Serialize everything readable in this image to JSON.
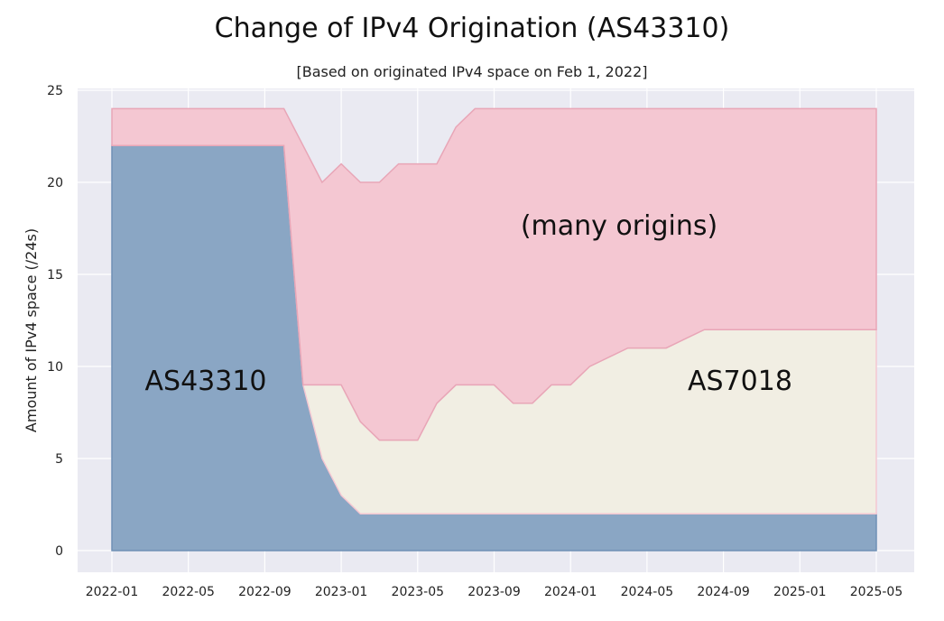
{
  "chart_data": {
    "type": "area",
    "title": "Change of IPv4 Origination (AS43310)",
    "subtitle": "[Based on originated IPv4 space on Feb 1, 2022]",
    "xlabel": "",
    "ylabel": "Amount of IPv4 space (/24s)",
    "ylim": [
      0,
      25
    ],
    "xlim": [
      "2021-12",
      "2025-06"
    ],
    "xticks": [
      "2022-01",
      "2022-05",
      "2022-09",
      "2023-01",
      "2023-05",
      "2023-09",
      "2024-01",
      "2024-05",
      "2024-09",
      "2025-01",
      "2025-05"
    ],
    "yticks": [
      0,
      5,
      10,
      15,
      20,
      25
    ],
    "grid": true,
    "stacked": true,
    "x": [
      "2022-01",
      "2022-04",
      "2022-07",
      "2022-10",
      "2022-11",
      "2022-12",
      "2023-01",
      "2023-02",
      "2023-03",
      "2023-04",
      "2023-05",
      "2023-06",
      "2023-07",
      "2023-08",
      "2023-09",
      "2023-10",
      "2023-11",
      "2023-12",
      "2024-01",
      "2024-02",
      "2024-04",
      "2024-06",
      "2024-08",
      "2024-10",
      "2024-12",
      "2025-02",
      "2025-04",
      "2025-05"
    ],
    "series": [
      {
        "name": "AS43310",
        "color": "#8aa6c4",
        "values": [
          22,
          22,
          22,
          22,
          9,
          5,
          3,
          2,
          2,
          2,
          2,
          2,
          2,
          2,
          2,
          2,
          2,
          2,
          2,
          2,
          2,
          2,
          2,
          2,
          2,
          2,
          2,
          2
        ]
      },
      {
        "name": "AS7018",
        "color": "#f1eee3",
        "values": [
          0,
          0,
          0,
          0,
          0,
          4,
          6,
          5,
          4,
          4,
          4,
          6,
          7,
          7,
          7,
          6,
          6,
          7,
          7,
          8,
          9,
          9,
          10,
          10,
          10,
          10,
          10,
          10
        ]
      },
      {
        "name": "many origins",
        "color": "#f4c7d2",
        "values": [
          2,
          2,
          2,
          2,
          13,
          11,
          12,
          13,
          14,
          15,
          15,
          13,
          14,
          15,
          15,
          16,
          16,
          15,
          15,
          14,
          13,
          13,
          12,
          12,
          12,
          12,
          12,
          12
        ]
      }
    ],
    "annotations": [
      "AS43310",
      "AS7018",
      "(many origins)"
    ]
  }
}
